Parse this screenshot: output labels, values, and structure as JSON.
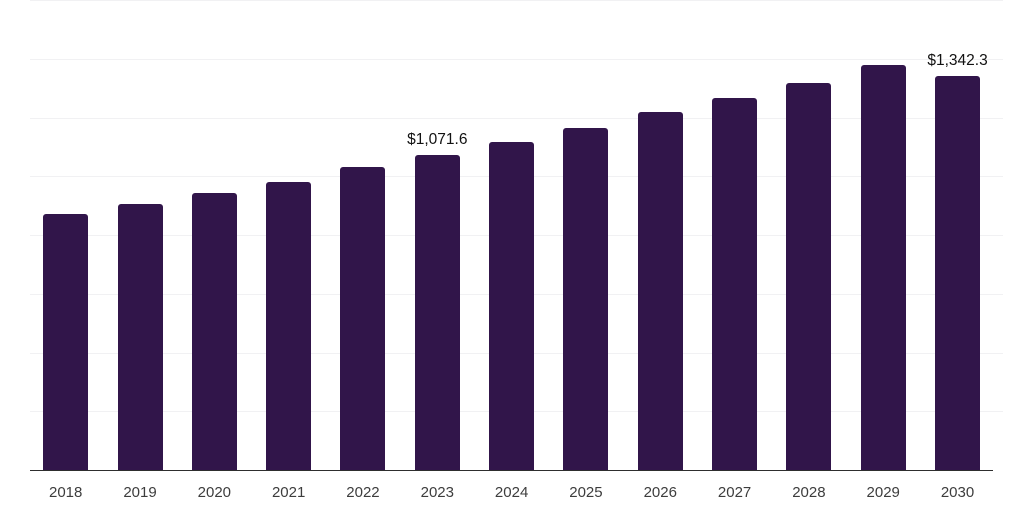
{
  "chart_data": {
    "type": "bar",
    "categories": [
      "2018",
      "2019",
      "2020",
      "2021",
      "2022",
      "2023",
      "2024",
      "2025",
      "2026",
      "2027",
      "2028",
      "2029",
      "2030"
    ],
    "values": [
      870,
      905,
      943,
      981,
      1032,
      1071.6,
      1116,
      1164,
      1219,
      1268,
      1319,
      1380,
      1342.3
    ],
    "point_labels": [
      "",
      "",
      "",
      "",
      "",
      "$1,071.6",
      "",
      "",
      "",
      "",
      "",
      "",
      "$1,342.3"
    ],
    "ylim": [
      0,
      1600
    ],
    "gridline_step": 200,
    "grid": "horizontal",
    "legend": "none",
    "bar_color": "#31154A",
    "gridline_color": "#f1f1f3",
    "axis_line_color": "#2e2e2e",
    "tick_label_color": "#3d3d3d",
    "data_label_color": "#121212",
    "background_color": "#ffffff"
  }
}
